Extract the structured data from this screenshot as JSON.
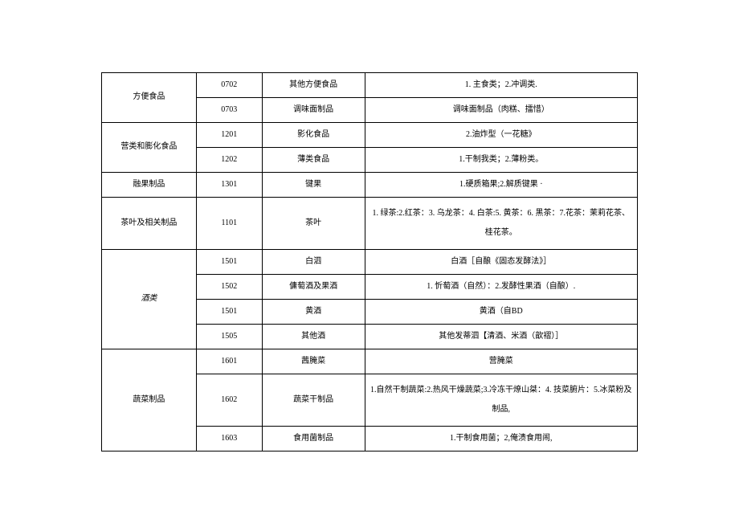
{
  "table": {
    "col_widths": {
      "cat": 118,
      "code": 82,
      "name": 128,
      "desc": 340
    },
    "border_color": "#000000",
    "background_color": "#ffffff",
    "font_size": 10,
    "text_color": "#000000",
    "rows": [
      {
        "cat": "方便食品",
        "code": "0702",
        "name": "其他方便食品",
        "desc": "1. 主食类；2.冲调类."
      },
      {
        "cat": "",
        "code": "0703",
        "name": "调味面制品",
        "desc": "调味面制品（肉糕、擂惜）"
      },
      {
        "cat": "营类和膨化食品",
        "code": "1201",
        "name": "影化食品",
        "desc": "2.油炸型（一花糖》"
      },
      {
        "cat": "",
        "code": "1202",
        "name": "薄类食品",
        "desc": "1.干制我类；2.薄粉类。"
      },
      {
        "cat": "融果制品",
        "code": "1301",
        "name": "键果",
        "desc": "1.硬质箱果;2.解质键果 ·"
      },
      {
        "cat": "茶叶及相关制品",
        "code": "1101",
        "name": "茶叶",
        "desc": "1. 绿茶:2.红茶：3. 乌龙茶：4. 白茶:5. 黄茶：6. 黑茶：7.花茶：茉莉花茶、桂花茶。"
      },
      {
        "cat": "酒类",
        "code": "1501",
        "name": "白泗",
        "desc": "白酒［自酿《固态发酵法》］"
      },
      {
        "cat": "",
        "code": "1502",
        "name": "傭萄酒及果酒",
        "desc": "1. 忻萄酒（自然）：2.发酵性果酒（自酿）."
      },
      {
        "cat": "",
        "code": "1501",
        "name": "黄酒",
        "desc": "黄酒（自BD"
      },
      {
        "cat": "",
        "code": "1505",
        "name": "其他酒",
        "desc": "其他发蒂泗【清酒、米酒（歆褶）］"
      },
      {
        "cat": "蔬菜制品",
        "code": "1601",
        "name": "茜腌菜",
        "desc": "营腌菜"
      },
      {
        "cat": "",
        "code": "1602",
        "name": "蔬菜干制品",
        "desc": "1.自然干制蔬菜:2.热风干燥蔬菜;3.冷冻干燎山桀：4. 技菜腑片：5.冰菜粉及制品,"
      },
      {
        "cat": "",
        "code": "1603",
        "name": "食用菌制品",
        "desc": "1.干制食用菌；2,俺渍食用闹,"
      }
    ]
  }
}
